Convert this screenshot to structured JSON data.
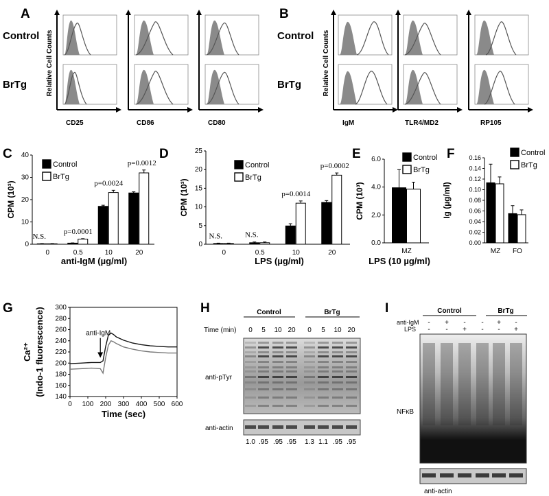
{
  "panels": {
    "A": "A",
    "B": "B",
    "C": "C",
    "D": "D",
    "E": "E",
    "F": "F",
    "G": "G",
    "H": "H",
    "I": "I"
  },
  "flow": {
    "row_control": "Control",
    "row_brtg": "BrTg",
    "ylabel": "Relative Cell Counts",
    "markers_A": [
      "CD25",
      "CD86",
      "CD80"
    ],
    "markers_B": [
      "IgM",
      "TLR4/MD2",
      "RP105"
    ]
  },
  "chart_data": [
    {
      "id": "C",
      "type": "bar",
      "title": "",
      "xlabel": "anti-IgM (µg/ml)",
      "ylabel": "CPM (10³)",
      "categories": [
        "0",
        "0.5",
        "10",
        "20"
      ],
      "ylim": [
        0,
        40
      ],
      "yticks": [
        "0",
        "10",
        "20",
        "30",
        "40"
      ],
      "series": [
        {
          "name": "Control",
          "values": [
            0.2,
            0.5,
            17,
            23
          ],
          "errors": [
            0.1,
            0.1,
            0.5,
            0.5
          ]
        },
        {
          "name": "BrTg",
          "values": [
            0.2,
            2.3,
            23.2,
            32
          ],
          "errors": [
            0.1,
            0.2,
            1,
            1.3
          ]
        }
      ],
      "annotations": [
        "N.S.",
        "p=0.0001",
        "p=0.0024",
        "p=0.0012"
      ]
    },
    {
      "id": "D",
      "type": "bar",
      "title": "",
      "xlabel": "LPS (µg/ml)",
      "ylabel": "CPM (10³)",
      "categories": [
        "0",
        "0.5",
        "10",
        "20"
      ],
      "ylim": [
        0,
        25
      ],
      "yticks": [
        "0",
        "5",
        "10",
        "15",
        "20",
        "25"
      ],
      "series": [
        {
          "name": "Control",
          "values": [
            0.2,
            0.4,
            4.9,
            11.2
          ],
          "errors": [
            0.1,
            0.2,
            0.6,
            0.5
          ]
        },
        {
          "name": "BrTg",
          "values": [
            0.2,
            0.4,
            11,
            18.5
          ],
          "errors": [
            0.1,
            0.2,
            0.6,
            0.6
          ]
        }
      ],
      "annotations": [
        "N.S.",
        "N.S.",
        "p=0.0014",
        "p=0.0002"
      ]
    },
    {
      "id": "E",
      "type": "bar",
      "title": "",
      "xlabel": "LPS (10 µg/ml)",
      "ylabel": "CPM (10³)",
      "categories": [
        "MZ"
      ],
      "ylim": [
        0,
        6
      ],
      "yticks": [
        "0.0",
        "2.0",
        "4.0",
        "6.0"
      ],
      "series": [
        {
          "name": "Control",
          "values": [
            3.95
          ],
          "errors": [
            1.3
          ]
        },
        {
          "name": "BrTg",
          "values": [
            3.85
          ],
          "errors": [
            0.5
          ]
        }
      ]
    },
    {
      "id": "F",
      "type": "bar",
      "title": "",
      "xlabel": "",
      "ylabel": "Ig (µg/ml)",
      "categories": [
        "MZ",
        "FO"
      ],
      "ylim": [
        0,
        0.16
      ],
      "yticks": [
        "0.00",
        "0.02",
        "0.04",
        "0.06",
        "0.08",
        "0.10",
        "0.12",
        "0.14",
        "0.16"
      ],
      "series": [
        {
          "name": "Control",
          "values": [
            0.113,
            0.055
          ],
          "errors": [
            0.035,
            0.015
          ]
        },
        {
          "name": "BrTg",
          "values": [
            0.111,
            0.053
          ],
          "errors": [
            0.013,
            0.009
          ]
        }
      ]
    },
    {
      "id": "G",
      "type": "line",
      "title": "",
      "xlabel": "Time (sec)",
      "ylabel": "Ca²⁺",
      "ylabel2": "(Indo-1 fluorescence)",
      "xlim": [
        0,
        600
      ],
      "ylim": [
        140,
        300
      ],
      "xticks": [
        "0",
        "100",
        "200",
        "300",
        "400",
        "500",
        "600"
      ],
      "yticks": [
        "140",
        "160",
        "180",
        "200",
        "220",
        "240",
        "260",
        "280",
        "300"
      ],
      "annotation": "anti-IgM",
      "series": [
        {
          "name": "BrTg",
          "color": "#111111",
          "x": [
            0,
            60,
            120,
            170,
            185,
            200,
            215,
            230,
            245,
            260,
            300,
            350,
            400,
            450,
            500,
            550,
            600
          ],
          "y": [
            199,
            200,
            201,
            201,
            204,
            230,
            250,
            254,
            251,
            247,
            241,
            236,
            233,
            231,
            230,
            229,
            229
          ]
        },
        {
          "name": "Control",
          "color": "#777777",
          "x": [
            0,
            60,
            120,
            170,
            185,
            200,
            215,
            230,
            245,
            260,
            300,
            350,
            400,
            450,
            500,
            550,
            600
          ],
          "y": [
            189,
            190,
            191,
            190,
            182,
            210,
            232,
            240,
            238,
            235,
            229,
            225,
            222,
            220,
            219,
            218,
            218
          ]
        }
      ]
    }
  ],
  "blotH": {
    "group1": "Control",
    "group2": "BrTg",
    "time_label": "Time (min)",
    "times": [
      "0",
      "5",
      "10",
      "20",
      "0",
      "5",
      "10",
      "20"
    ],
    "row_main": "anti-pTyr",
    "row_actin": "anti-actin",
    "values": [
      "1.0",
      ".95",
      ".95",
      ".95",
      "1.3",
      "1.1",
      ".95",
      ".95"
    ]
  },
  "blotI": {
    "group1": "Control",
    "group2": "BrTg",
    "row1_label": "anti-IgM",
    "row2_label": "LPS",
    "row1": [
      "-",
      "+",
      "-",
      "-",
      "+",
      "-"
    ],
    "row2": [
      "-",
      "-",
      "+",
      "-",
      "-",
      "+"
    ],
    "band_label": "NFκB",
    "row_actin": "anti-actin"
  }
}
